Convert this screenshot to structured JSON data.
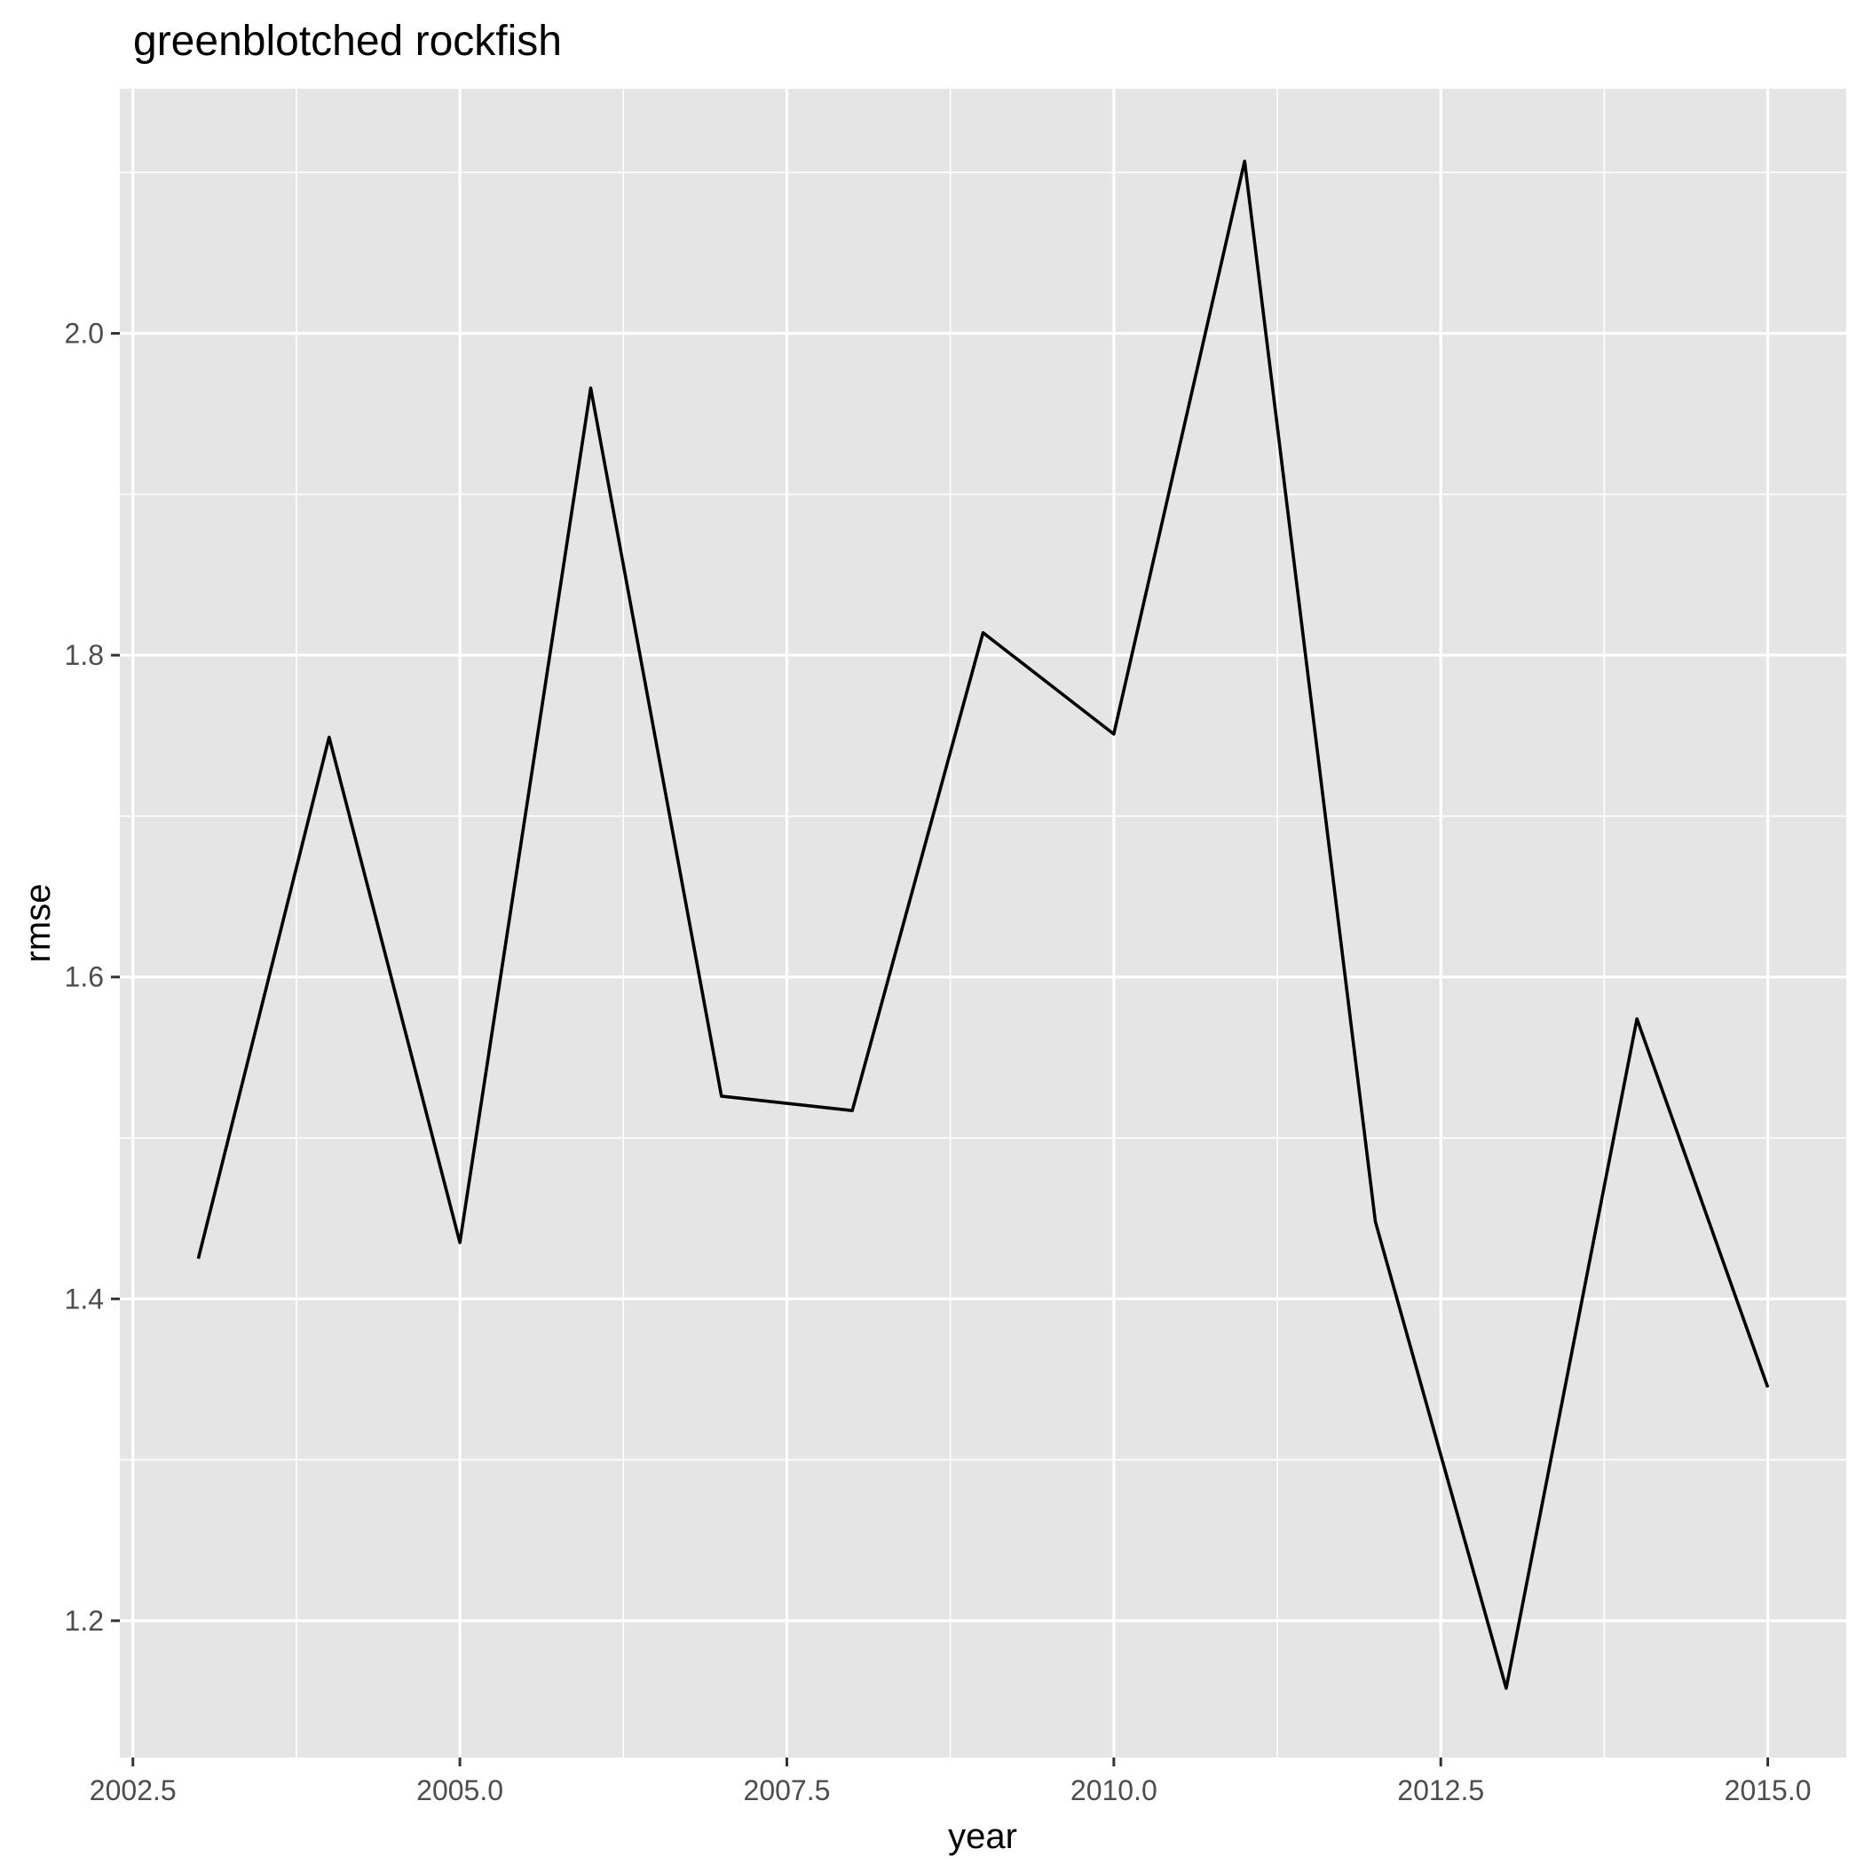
{
  "chart_data": {
    "type": "line",
    "title": "greenblotched rockfish",
    "xlabel": "year",
    "ylabel": "rmse",
    "xlim": [
      2002.4,
      2015.6
    ],
    "ylim": [
      1.115,
      2.152
    ],
    "x_ticks": [
      2002.5,
      2005.0,
      2007.5,
      2010.0,
      2012.5,
      2015.0
    ],
    "x_tick_labels": [
      "2002.5",
      "2005.0",
      "2007.5",
      "2010.0",
      "2012.5",
      "2015.0"
    ],
    "y_ticks": [
      1.2,
      1.4,
      1.6,
      1.8,
      2.0
    ],
    "y_tick_labels": [
      "1.2",
      "1.4",
      "1.6",
      "1.8",
      "2.0"
    ],
    "grid": true,
    "series": [
      {
        "x": [
          2003,
          2004,
          2005,
          2006,
          2007,
          2008,
          2009,
          2010,
          2011,
          2012,
          2013,
          2014,
          2015
        ],
        "y": [
          1.425,
          1.749,
          1.435,
          1.966,
          1.526,
          1.517,
          1.814,
          1.751,
          2.107,
          1.448,
          1.158,
          1.574,
          1.345
        ]
      }
    ],
    "colors": {
      "panel": "#e5e5e5",
      "grid": "#ffffff",
      "line": "#000000",
      "tick_text": "#4d4d4d"
    }
  }
}
